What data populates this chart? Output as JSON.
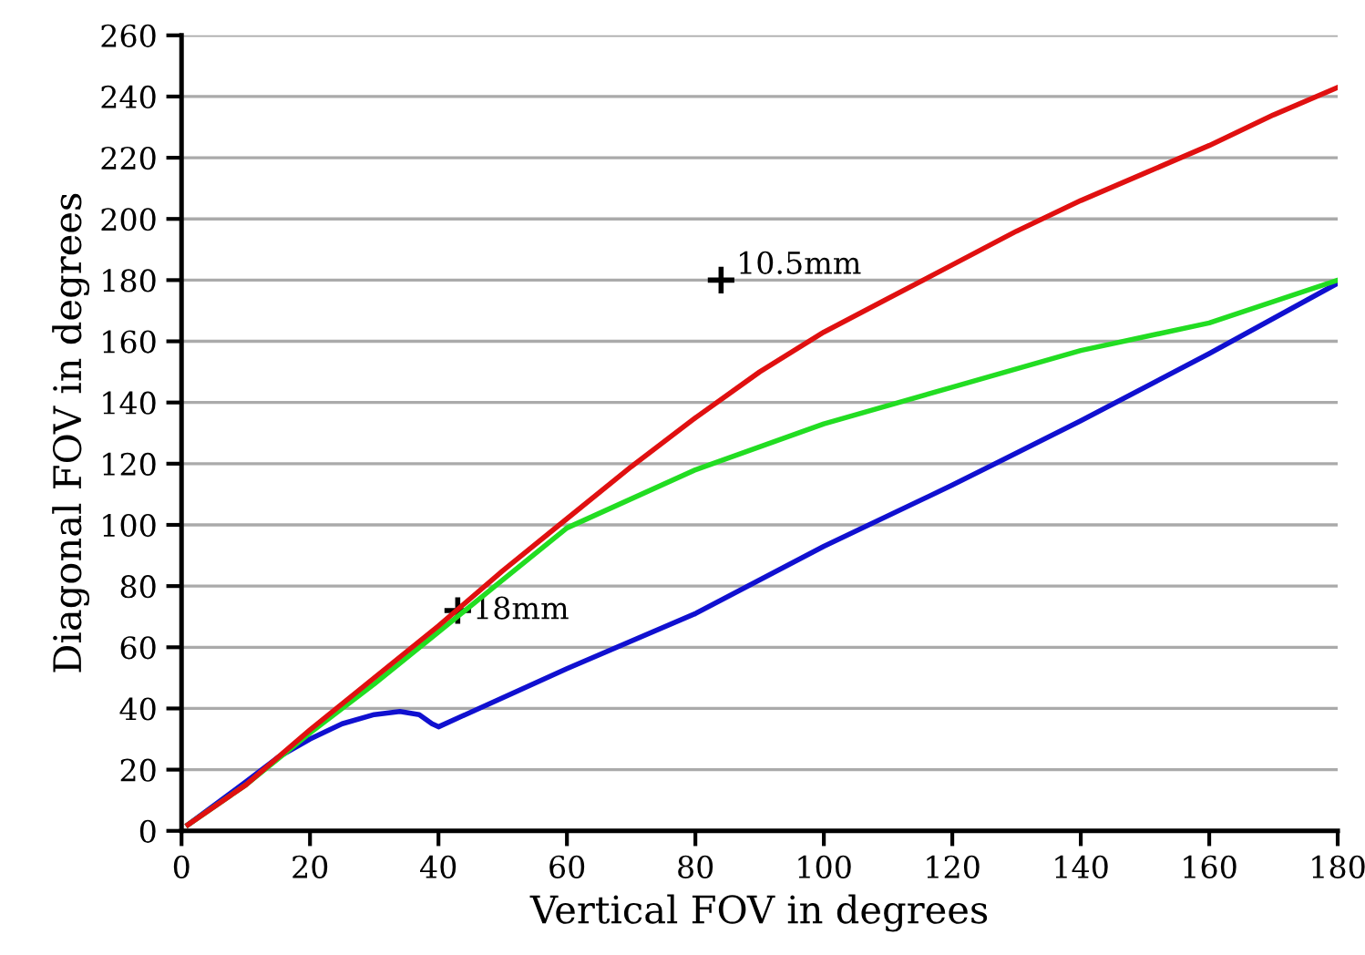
{
  "chart_data": {
    "type": "line",
    "xlabel": "Vertical FOV in degrees",
    "ylabel": "Diagonal FOV in degrees",
    "xlim": [
      0,
      180
    ],
    "ylim": [
      0,
      260
    ],
    "xticks": [
      0,
      20,
      40,
      60,
      80,
      100,
      120,
      140,
      160,
      180
    ],
    "yticks": [
      0,
      20,
      40,
      60,
      80,
      100,
      120,
      140,
      160,
      180,
      200,
      220,
      240,
      260
    ],
    "grid": "y",
    "marker": "none",
    "line_style": "solid",
    "series": [
      {
        "color": "#e01010",
        "x": [
          1,
          10,
          20,
          30,
          40,
          50,
          60,
          70,
          80,
          90,
          100,
          110,
          120,
          130,
          140,
          150,
          160,
          170,
          180
        ],
        "values": [
          2,
          15,
          33,
          50,
          67,
          85,
          102,
          119,
          135,
          150,
          163,
          174,
          185,
          196,
          206,
          215,
          224,
          234,
          243
        ]
      },
      {
        "type": "scatter",
        "color": "#000000",
        "marker": "cross",
        "x": [
          84,
          43
        ],
        "values": [
          180,
          72
        ]
      },
      {
        "color": "#22dd22",
        "x": [
          1,
          10,
          20,
          30,
          40,
          50,
          60,
          80,
          100,
          120,
          140,
          160,
          180
        ],
        "values": [
          2,
          15,
          32,
          48,
          65,
          82,
          99,
          118,
          133,
          145,
          157,
          166,
          180
        ]
      },
      {
        "color": "#1010d0",
        "x": [
          1,
          10,
          15,
          20,
          25,
          30,
          34,
          37,
          39,
          40,
          60,
          80,
          100,
          120,
          140,
          160,
          180
        ],
        "values": [
          2,
          16,
          24,
          30,
          35,
          38,
          39,
          38,
          35,
          34,
          53,
          71,
          93,
          113,
          134,
          156,
          179
        ]
      }
    ],
    "annotations": [
      {
        "text": "10.5mm",
        "x": 84,
        "y": 180
      },
      {
        "text": "18mm",
        "x": 43,
        "y": 72
      }
    ]
  }
}
